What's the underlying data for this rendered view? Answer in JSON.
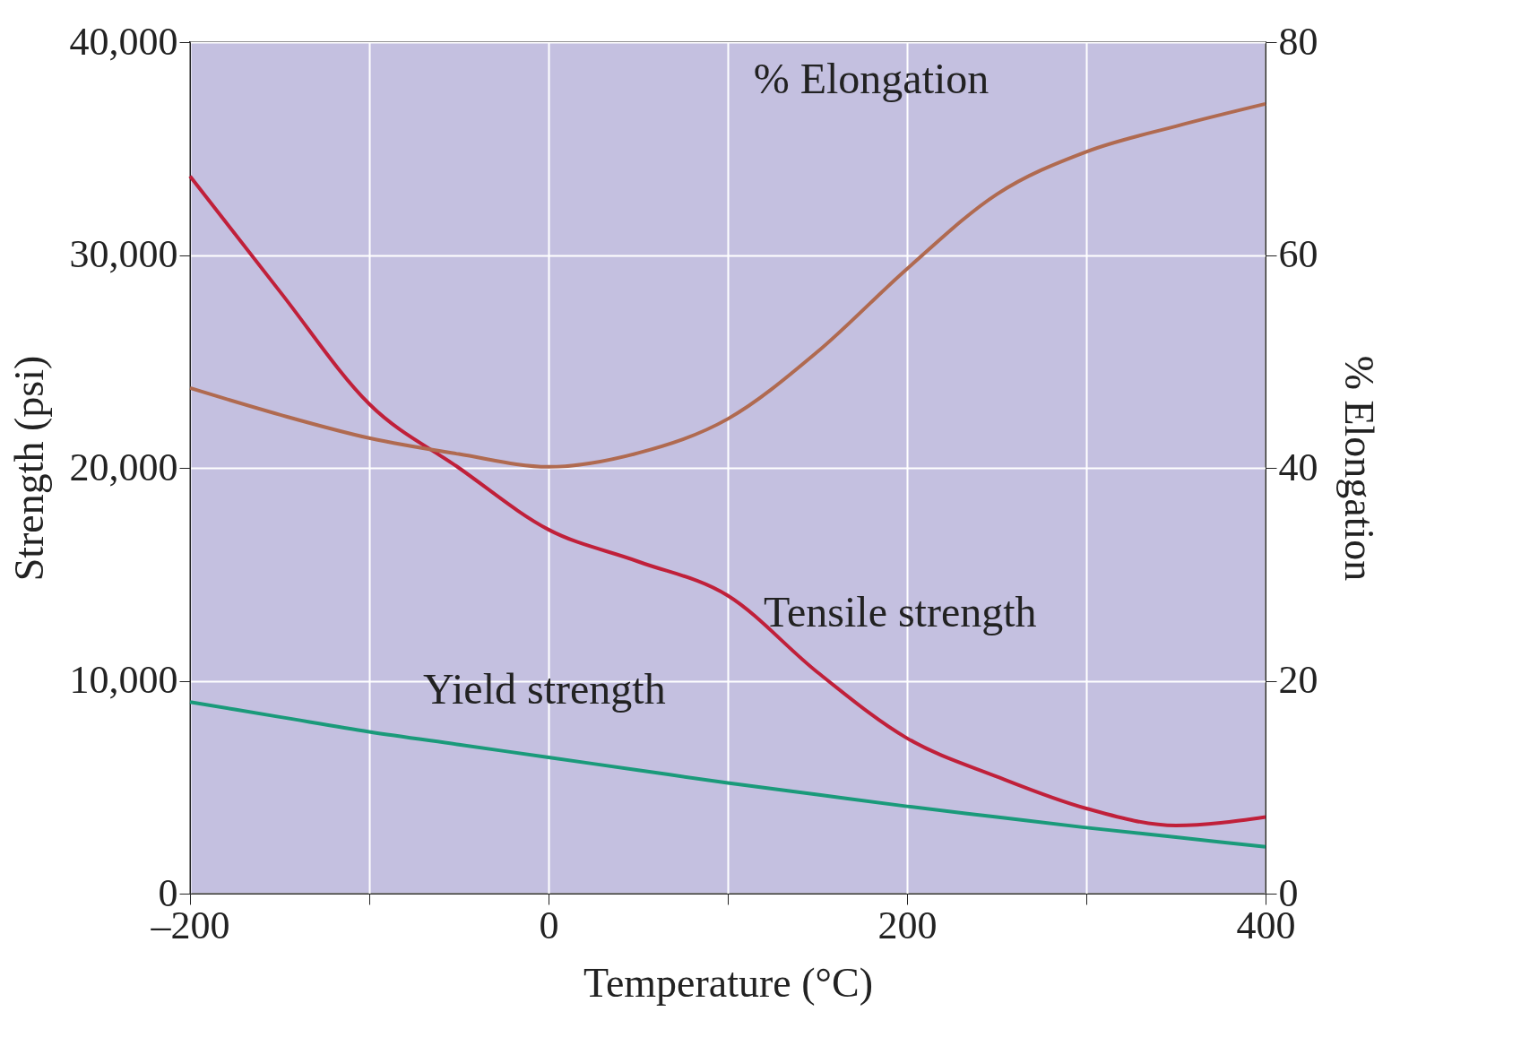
{
  "chart_data": {
    "type": "line",
    "xlabel": "Temperature (°C)",
    "ylabel": "Strength (psi)",
    "y2label": "% Elongation",
    "x": [
      -200,
      -150,
      -100,
      -50,
      0,
      50,
      100,
      150,
      200,
      250,
      300,
      350,
      400
    ],
    "series": [
      {
        "name": "Tensile strength",
        "color": "#c0203a",
        "values": [
          33700,
          28300,
          23000,
          20000,
          17100,
          15600,
          14000,
          10400,
          7300,
          5500,
          4000,
          3200,
          3600
        ]
      },
      {
        "name": "Yield strength",
        "color": "#1a9a7a",
        "values": [
          9000,
          8300,
          7600,
          7000,
          6400,
          5800,
          5200,
          4650,
          4100,
          3600,
          3100,
          2650,
          2200
        ]
      },
      {
        "name": "% Elongation",
        "color": "#b06a50",
        "axis": "y2",
        "values": [
          47.5,
          45,
          42.8,
          41.3,
          40.1,
          41.4,
          44.6,
          50.9,
          58.7,
          65.7,
          69.7,
          72.1,
          74.2
        ]
      }
    ],
    "xlim": [
      -200,
      400
    ],
    "xticks": [
      {
        "value": -200,
        "label": "–200"
      },
      {
        "value": -100,
        "label": null
      },
      0,
      {
        "value": 100,
        "label": null
      },
      200,
      {
        "value": 300,
        "label": null
      },
      400
    ],
    "ylim": [
      0,
      40000
    ],
    "yticks": [
      0,
      {
        "value": 10000,
        "label": "10,000"
      },
      {
        "value": 20000,
        "label": "20,000"
      },
      {
        "value": 30000,
        "label": "30,000"
      },
      {
        "value": 40000,
        "label": "40,000"
      }
    ],
    "y2lim": [
      0,
      80
    ],
    "y2ticks": [
      0,
      20,
      40,
      60,
      80
    ],
    "grid": true,
    "line_style": "solid"
  }
}
